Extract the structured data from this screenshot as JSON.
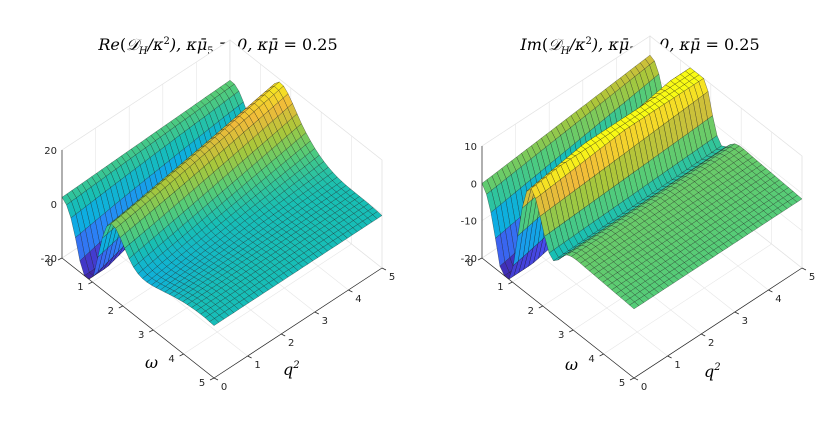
{
  "chart_data": [
    {
      "type": "surface",
      "title_parts": [
        "Re",
        "(",
        "𝒟",
        "H",
        "/κ",
        "2",
        "),  κ",
        "μ̄",
        "5",
        " = 0,  κ",
        "μ̄",
        " = 0.25"
      ],
      "title_text": "Re(𝒟_H/κ²), κμ̄₅ = 0, κμ̄ = 0.25",
      "xlabel": "ω",
      "ylabel": "q²",
      "xlim": [
        0,
        5
      ],
      "ylim": [
        0,
        5
      ],
      "zlim": [
        -20,
        20
      ],
      "xticks": [
        "0",
        "1",
        "2",
        "3",
        "4",
        "5"
      ],
      "yticks": [
        "0",
        "1",
        "2",
        "3",
        "4",
        "5"
      ],
      "zticks": [
        "-20",
        "0",
        "20"
      ],
      "colormap": "parula",
      "grid": true,
      "surface_points": {
        "note_units": "data units (ω, q², value)",
        "samples": [
          {
            "omega": 0,
            "q2": 0,
            "value": 5
          },
          {
            "omega": 0.8,
            "q2": 0,
            "value": -22
          },
          {
            "omega": 1.5,
            "q2": 0,
            "value": 7
          },
          {
            "omega": 2.5,
            "q2": 0,
            "value": -8
          },
          {
            "omega": 5,
            "q2": 0,
            "value": -10
          },
          {
            "omega": 0,
            "q2": 5,
            "value": 20
          },
          {
            "omega": 5,
            "q2": 5,
            "value": 0
          }
        ]
      }
    },
    {
      "type": "surface",
      "title_parts": [
        "Im",
        "(",
        "𝒟",
        "H",
        "/κ",
        "2",
        "),  κ",
        "μ̄",
        "5",
        " = 0,  κ",
        "μ̄",
        " = 0.25"
      ],
      "title_text": "Im(𝒟_H/κ²), κμ̄₅ = 0, κμ̄ = 0.25",
      "xlabel": "ω",
      "ylabel": "q²",
      "xlim": [
        0,
        5
      ],
      "ylim": [
        0,
        5
      ],
      "zlim": [
        -20,
        10
      ],
      "xticks": [
        "0",
        "1",
        "2",
        "3",
        "4",
        "5"
      ],
      "yticks": [
        "0",
        "1",
        "2",
        "3",
        "4",
        "5"
      ],
      "zticks": [
        "-20",
        "-10",
        "0",
        "10"
      ],
      "colormap": "parula",
      "grid": true,
      "surface_points": {
        "note_units": "data units (ω, q², value)",
        "samples": [
          {
            "omega": 0,
            "q2": 0,
            "value": 0
          },
          {
            "omega": 0.8,
            "q2": 0,
            "value": -22
          },
          {
            "omega": 1.5,
            "q2": 0,
            "value": 8
          },
          {
            "omega": 2.3,
            "q2": 0,
            "value": -4
          },
          {
            "omega": 5,
            "q2": 0,
            "value": -3
          },
          {
            "omega": 0,
            "q2": 5,
            "value": 10
          },
          {
            "omega": 2.5,
            "q2": 5,
            "value": 0
          }
        ]
      }
    }
  ]
}
